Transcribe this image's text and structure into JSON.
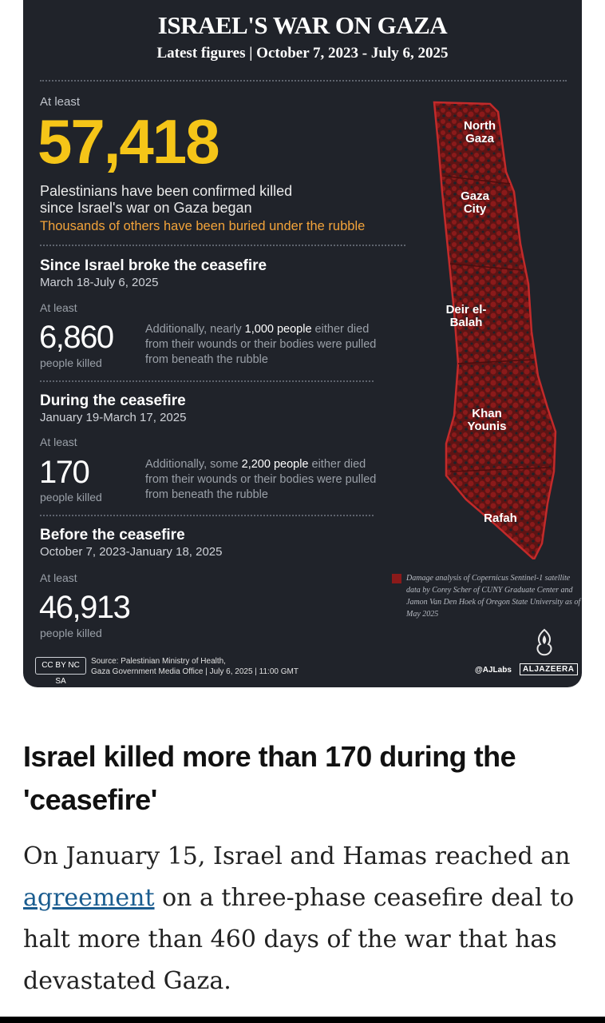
{
  "infographic": {
    "title": "ISRAEL'S WAR ON GAZA",
    "subtitle": "Latest figures | October 7, 2023 - July 6, 2025",
    "headline": {
      "at_least": "At least",
      "number": "57,418",
      "line1": "Palestinians have been confirmed killed",
      "line2": "since Israel's war on Gaza began",
      "line3": "Thousands of others have been buried under the rubble"
    },
    "sections": [
      {
        "title": "Since Israel broke the ceasefire",
        "dates": "March 18-July 6, 2025",
        "at_least": "At least",
        "number": "6,860",
        "label": "people killed",
        "note_pre": "Additionally, nearly ",
        "note_bold": "1,000 people",
        "note_post": " either died from their wounds or their bodies were pulled from beneath the rubble"
      },
      {
        "title": "During the ceasefire",
        "dates": "January 19-March 17, 2025",
        "at_least": "At least",
        "number": "170",
        "label": "people killed",
        "note_pre": "Additionally, some ",
        "note_bold": "2,200 people",
        "note_post": " either died from their wounds or their bodies were pulled from beneath the rubble"
      },
      {
        "title": "Before the ceasefire",
        "dates": "October 7, 2023-January 18, 2025",
        "at_least": "At least",
        "number": "46,913",
        "label": "people killed"
      }
    ],
    "map": {
      "regions": [
        "North Gaza",
        "Gaza City",
        "Deir el-Balah",
        "Khan Younis",
        "Rafah"
      ],
      "legend": "Damage analysis of Copernicus Sentinel-1 satellite data by Corey Scher of CUNY Graduate Center and Jamon Van Den Hoek of Oregon State University as of May 2025",
      "damage_color": "#8b1a1a"
    },
    "footer": {
      "cc_label": "CC BY NC SA",
      "source_line1": "Source: Palestinian Ministry of Health,",
      "source_line2": "Gaza Government Media Office  |  July 6, 2025  |  11:00 GMT",
      "handle": "@AJLabs",
      "brand": "ALJAZEERA"
    }
  },
  "article": {
    "heading": "Israel killed more than 170 during the 'ceasefire'",
    "body_pre": "On January 15, Israel and Hamas reached an ",
    "body_link": "agreement",
    "body_post": " on a three-phase ceasefire deal to halt more than 460 days of the war that has devastated Gaza."
  },
  "colors": {
    "infographic_bg": "#20232a",
    "headline_yellow": "#f5c518",
    "rubble_orange": "#f2a33a",
    "link_blue": "#1a5c8f"
  }
}
